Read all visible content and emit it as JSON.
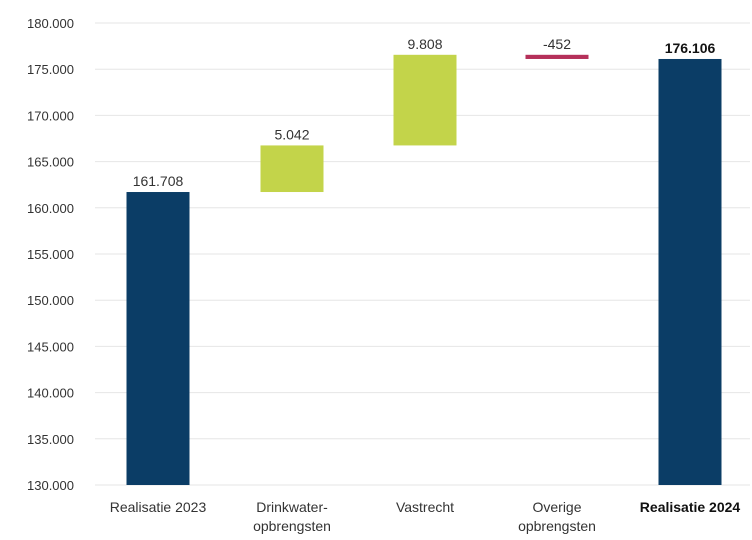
{
  "chart_data": {
    "type": "waterfall",
    "title": "",
    "xlabel": "",
    "ylabel": "",
    "ylim": [
      130000,
      180000
    ],
    "y_ticks": [
      "130.000",
      "135.000",
      "140.000",
      "145.000",
      "150.000",
      "155.000",
      "160.000",
      "165.000",
      "170.000",
      "175.000",
      "180.000"
    ],
    "y_tick_values": [
      130000,
      135000,
      140000,
      145000,
      150000,
      155000,
      160000,
      165000,
      170000,
      175000,
      180000
    ],
    "grid": true,
    "colors": {
      "total": "#0b3d66",
      "increase": "#c3d44a",
      "decrease": "#b5305a",
      "grid": "#e6e6e6",
      "text": "#333333"
    },
    "steps": [
      {
        "category": [
          "Realisatie 2023"
        ],
        "kind": "total",
        "start": 130000,
        "end": 161708,
        "label": "161.708",
        "bold": false
      },
      {
        "category": [
          "Drinkwater-",
          "opbrengsten"
        ],
        "kind": "increase",
        "start": 161708,
        "end": 166750,
        "label": "5.042",
        "bold": false
      },
      {
        "category": [
          "Vastrecht"
        ],
        "kind": "increase",
        "start": 166750,
        "end": 176558,
        "label": "9.808",
        "bold": false
      },
      {
        "category": [
          "Overige",
          "opbrengsten"
        ],
        "kind": "decrease",
        "start": 176558,
        "end": 176106,
        "label": "-452",
        "bold": false
      },
      {
        "category": [
          "Realisatie 2024"
        ],
        "kind": "total",
        "start": 130000,
        "end": 176106,
        "label": "176.106",
        "bold": true
      }
    ]
  }
}
